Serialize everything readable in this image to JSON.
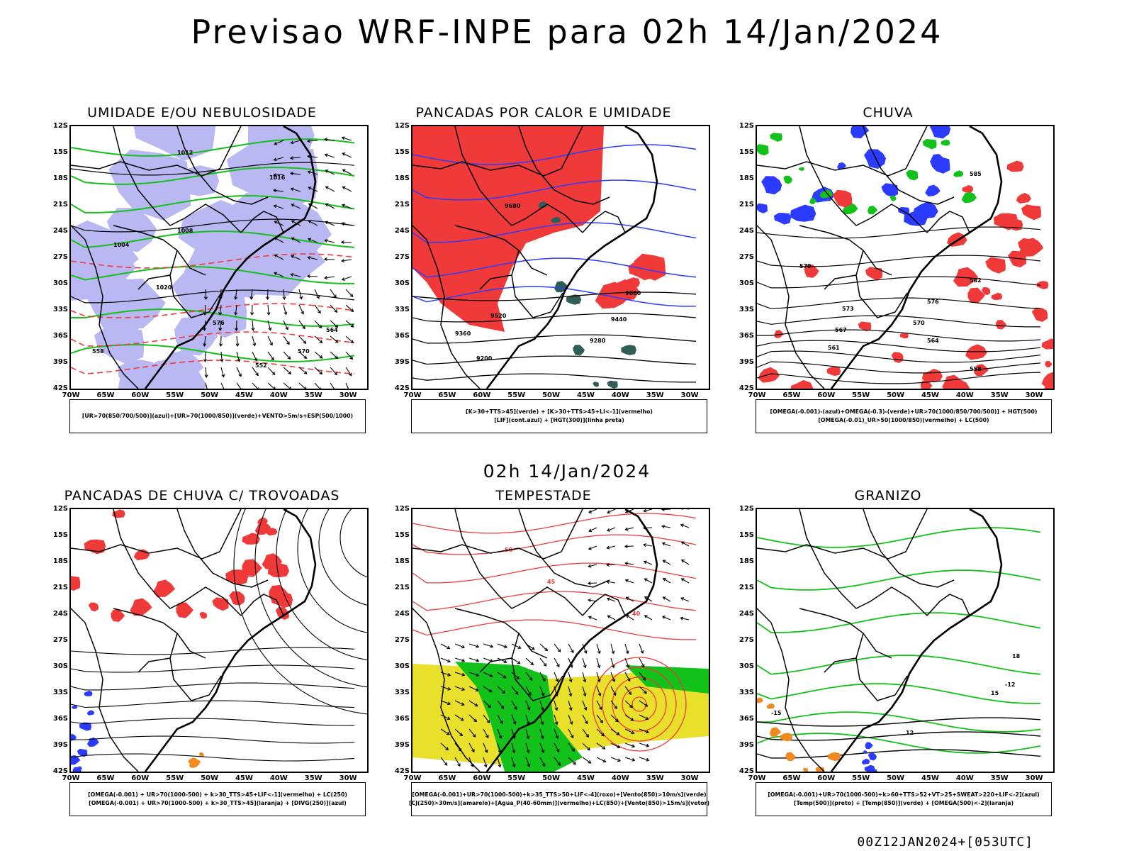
{
  "main_title": "Previsao WRF-INPE  para 02h 14/Jan/2024",
  "mid_title": "02h 14/Jan/2024",
  "footer": "00Z12JAN2024+[053UTC]",
  "lat_labels": [
    "12S",
    "15S",
    "18S",
    "21S",
    "24S",
    "27S",
    "30S",
    "33S",
    "36S",
    "39S",
    "42S"
  ],
  "lon_labels": [
    "70W",
    "65W",
    "60W",
    "55W",
    "50W",
    "45W",
    "40W",
    "35W",
    "30W"
  ],
  "colors": {
    "blue": "#2b3bff",
    "green": "#12c21a",
    "red": "#f03a3a",
    "yellow": "#e8e02a",
    "dark_teal": "#2e5e55",
    "lavender": "#b9b8f2",
    "orange": "#f08a20"
  },
  "panels": [
    {
      "title": "UMIDADE E/OU NEBULOSIDADE",
      "legend": [
        "[UR>70(850/700/500)](azul)+[UR>70(1000/850)](verde)+VENTO>5m/s+ESP(500/1000)"
      ],
      "contour_labels": [
        "1012",
        "1016",
        "1008",
        "1004",
        "1020",
        "576",
        "570",
        "564",
        "558",
        "552"
      ]
    },
    {
      "title": "PANCADAS POR CALOR E UMIDADE",
      "legend": [
        "[K>30+TTS>45](verde) + [K>30+TTS>45+LI<-1](vermelho)",
        "[LIF](cont.azul) + [HGT(300)](linha preta)"
      ],
      "contour_labels": [
        "9600",
        "9520",
        "9440",
        "9360",
        "9280",
        "9200",
        "9680"
      ]
    },
    {
      "title": "CHUVA",
      "legend": [
        "[OMEGA(-0.001)-(azul)+OMEGA(-0.3)-(verde)+UR>70(1000/850/700/500)] + HGT(500)",
        "[OMEGA(-0.01)_UR>50(1000/850)(vermelho) + LC(500)"
      ],
      "contour_labels": [
        "585",
        "582",
        "579",
        "576",
        "573",
        "570",
        "567",
        "564",
        "561",
        "558"
      ]
    },
    {
      "title": "PANCADAS DE CHUVA C/ TROVOADAS",
      "legend": [
        "[OMEGA(-0.001) + UR>70(1000-500) + k>30_TTS>45+LIF<-1](vermelho) + LC(250)",
        "[OMEGA(-0.001) + UR>70(1000-500) + k>30_TTS>45](laranja) + [DIVG(250)](azul)"
      ],
      "contour_labels": []
    },
    {
      "title": "TEMPESTADE",
      "legend": [
        "[OMEGA(-0.001)+UR>70(1000-500)+k>35_TTS>50+LIF<-4](roxo)+[Vento(850)>10m/s](verde)",
        "[CJ(250)>30m/s](amarelo)+[Agua_P(40-60mm)](vermelho)+LC(850)+[Vento(850)>15m/s](vetor)"
      ],
      "contour_labels": [
        "45",
        "40",
        "50"
      ]
    },
    {
      "title": "GRANIZO",
      "legend": [
        "[OMEGA(-0.001)+UR>70(1000-500)+k>60+TTS>52+VT>25+SWEAT>220+LIF<-2](azul)",
        "[Temp(500)](preto) + [Temp(850)](verde) + [OMEGA(500)<-2](laranja)"
      ],
      "contour_labels": [
        "15",
        "12",
        "-12",
        "-15",
        "18"
      ]
    }
  ]
}
